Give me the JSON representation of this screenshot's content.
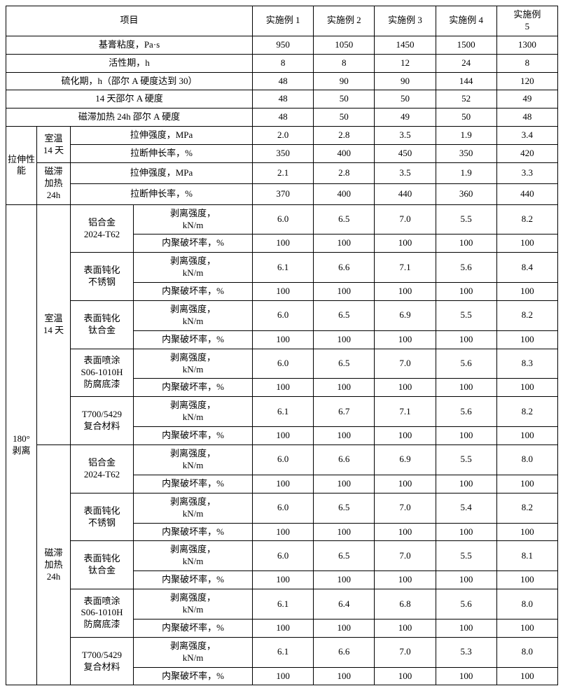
{
  "header": {
    "project": "项目",
    "ex1": "实施例 1",
    "ex2": "实施例 2",
    "ex3": "实施例 3",
    "ex4": "实施例 4",
    "ex5": "实施例\n5"
  },
  "rows": {
    "r1": {
      "label": "基膏粘度，Pa·s",
      "v": [
        "950",
        "1050",
        "1450",
        "1500",
        "1300"
      ]
    },
    "r2": {
      "label": "活性期，h",
      "v": [
        "8",
        "8",
        "12",
        "24",
        "8"
      ]
    },
    "r3": {
      "label": "硫化期，h（邵尔 A 硬度达到 30）",
      "v": [
        "48",
        "90",
        "90",
        "144",
        "120"
      ]
    },
    "r4": {
      "label": "14 天邵尔 A 硬度",
      "v": [
        "48",
        "50",
        "50",
        "52",
        "49"
      ]
    },
    "r5": {
      "label": "磁滞加热 24h 邵尔 A 硬度",
      "v": [
        "48",
        "50",
        "49",
        "50",
        "48"
      ]
    }
  },
  "tensile": {
    "group": "拉伸性能",
    "cond1": "室温\n14 天",
    "cond2": "磁滞\n加热\n24h",
    "m1": "拉伸强度，MPa",
    "m2": "拉断伸长率，%",
    "rt_strength": [
      "2.0",
      "2.8",
      "3.5",
      "1.9",
      "3.4"
    ],
    "rt_elong": [
      "350",
      "400",
      "450",
      "350",
      "420"
    ],
    "mh_strength": [
      "2.1",
      "2.8",
      "3.5",
      "1.9",
      "3.3"
    ],
    "mh_elong": [
      "370",
      "400",
      "440",
      "360",
      "440"
    ]
  },
  "peel": {
    "group": "180°\n剥离",
    "cond_rt": "室温\n14 天",
    "cond_mh": "磁滞\n加热\n24h",
    "sub_al": "铝合金\n2024-T62",
    "sub_ss": "表面钝化\n不锈钢",
    "sub_ti": "表面钝化\n钛合金",
    "sub_pr": "表面喷涂\nS06-1010H\n防腐底漆",
    "sub_cf": "T700/5429\n复合材料",
    "m_strength": "剥离强度，\nkN/m",
    "m_fail": "内聚破坏率，%",
    "rt": {
      "al": {
        "s": [
          "6.0",
          "6.5",
          "7.0",
          "5.5",
          "8.2"
        ],
        "f": [
          "100",
          "100",
          "100",
          "100",
          "100"
        ]
      },
      "ss": {
        "s": [
          "6.1",
          "6.6",
          "7.1",
          "5.6",
          "8.4"
        ],
        "f": [
          "100",
          "100",
          "100",
          "100",
          "100"
        ]
      },
      "ti": {
        "s": [
          "6.0",
          "6.5",
          "6.9",
          "5.5",
          "8.2"
        ],
        "f": [
          "100",
          "100",
          "100",
          "100",
          "100"
        ]
      },
      "pr": {
        "s": [
          "6.0",
          "6.5",
          "7.0",
          "5.6",
          "8.3"
        ],
        "f": [
          "100",
          "100",
          "100",
          "100",
          "100"
        ]
      },
      "cf": {
        "s": [
          "6.1",
          "6.7",
          "7.1",
          "5.6",
          "8.2"
        ],
        "f": [
          "100",
          "100",
          "100",
          "100",
          "100"
        ]
      }
    },
    "mh": {
      "al": {
        "s": [
          "6.0",
          "6.6",
          "6.9",
          "5.5",
          "8.0"
        ],
        "f": [
          "100",
          "100",
          "100",
          "100",
          "100"
        ]
      },
      "ss": {
        "s": [
          "6.0",
          "6.5",
          "7.0",
          "5.4",
          "8.2"
        ],
        "f": [
          "100",
          "100",
          "100",
          "100",
          "100"
        ]
      },
      "ti": {
        "s": [
          "6.0",
          "6.5",
          "7.0",
          "5.5",
          "8.1"
        ],
        "f": [
          "100",
          "100",
          "100",
          "100",
          "100"
        ]
      },
      "pr": {
        "s": [
          "6.1",
          "6.4",
          "6.8",
          "5.6",
          "8.0"
        ],
        "f": [
          "100",
          "100",
          "100",
          "100",
          "100"
        ]
      },
      "cf": {
        "s": [
          "6.1",
          "6.6",
          "7.0",
          "5.3",
          "8.0"
        ],
        "f": [
          "100",
          "100",
          "100",
          "100",
          "100"
        ]
      }
    }
  }
}
